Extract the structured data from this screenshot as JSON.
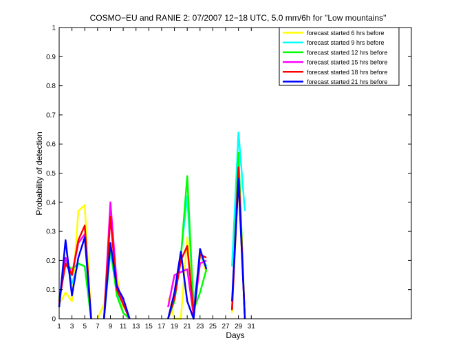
{
  "chart_data": {
    "type": "line",
    "title": "COSMO−EU and RANIE 2: 07/2007 12−18 UTC, 5.0 mm/6h for \"Low mountains\"",
    "xlabel": "Days",
    "ylabel": "Probability of detection",
    "xlim": [
      1,
      56
    ],
    "ylim": [
      0,
      1
    ],
    "xticks": [
      1,
      3,
      5,
      7,
      9,
      11,
      13,
      15,
      17,
      19,
      21,
      23,
      25,
      27,
      29,
      31
    ],
    "yticks": [
      0,
      0.1,
      0.2,
      0.3,
      0.4,
      0.5,
      0.6,
      0.7,
      0.8,
      0.9,
      1
    ],
    "ytick_labels": [
      "0",
      "0.1",
      "0.2",
      "0.3",
      "0.4",
      "0.5",
      "0.6",
      "0.7",
      "0.8",
      "0.9",
      "1"
    ],
    "legend_position": "top-right",
    "grid": false,
    "series": [
      {
        "name": "forecast started 6 hrs before",
        "color": "#ffff00",
        "segments": [
          [
            [
              1,
              0.05
            ],
            [
              2,
              0.09
            ],
            [
              3,
              0.06
            ],
            [
              4,
              0.37
            ],
            [
              5,
              0.39
            ],
            [
              6,
              0.0
            ]
          ],
          [
            [
              7,
              0.0
            ],
            [
              8,
              0.05
            ],
            [
              9,
              0.23
            ],
            [
              10,
              0.15
            ],
            [
              11,
              0.02
            ],
            [
              12,
              0.0
            ]
          ],
          [
            [
              18,
              0.07
            ],
            [
              19,
              0.0
            ],
            [
              20,
              0.0
            ],
            [
              21,
              0.28
            ],
            [
              22,
              0.05
            ],
            [
              23,
              0.22
            ],
            [
              24,
              0.16
            ]
          ],
          [
            [
              28,
              0.02
            ],
            [
              29,
              0.47
            ],
            [
              30,
              0.0
            ]
          ]
        ]
      },
      {
        "name": "forecast started 9 hrs before",
        "color": "#00ffff",
        "segments": [
          [
            [
              1,
              0.06
            ],
            [
              2,
              0.21
            ],
            [
              3,
              0.12
            ],
            [
              4,
              0.19
            ],
            [
              5,
              0.18
            ],
            [
              6,
              0.0
            ]
          ],
          [
            [
              8,
              0.0
            ],
            [
              9,
              0.23
            ],
            [
              10,
              0.09
            ],
            [
              11,
              0.02
            ],
            [
              12,
              0.0
            ]
          ],
          [
            [
              18,
              0.0
            ],
            [
              19,
              0.08
            ],
            [
              20,
              0.22
            ],
            [
              21,
              0.42
            ],
            [
              22,
              0.05
            ],
            [
              23,
              0.22
            ],
            [
              24,
              0.18
            ]
          ],
          [
            [
              28,
              0.18
            ],
            [
              29,
              0.64
            ],
            [
              30,
              0.37
            ]
          ]
        ]
      },
      {
        "name": "forecast started 12 hrs before",
        "color": "#00ff00",
        "segments": [
          [
            [
              1,
              0.07
            ],
            [
              2,
              0.19
            ],
            [
              3,
              0.17
            ],
            [
              4,
              0.19
            ],
            [
              5,
              0.18
            ],
            [
              6,
              0.0
            ]
          ],
          [
            [
              8,
              0.0
            ],
            [
              9,
              0.25
            ],
            [
              10,
              0.08
            ],
            [
              11,
              0.02
            ],
            [
              12,
              0.0
            ]
          ],
          [
            [
              18,
              0.0
            ],
            [
              19,
              0.06
            ],
            [
              20,
              0.21
            ],
            [
              21,
              0.49
            ],
            [
              22,
              0.03
            ],
            [
              23,
              0.09
            ],
            [
              24,
              0.17
            ]
          ],
          [
            [
              28,
              0.03
            ],
            [
              29,
              0.57
            ],
            [
              30,
              0.0
            ]
          ]
        ]
      },
      {
        "name": "forecast started 15 hrs before",
        "color": "#ff00ff",
        "segments": [
          [
            [
              1,
              0.05
            ],
            [
              2,
              0.21
            ],
            [
              3,
              0.15
            ],
            [
              4,
              0.26
            ],
            [
              5,
              0.29
            ],
            [
              6,
              0.0
            ]
          ],
          [
            [
              8,
              0.0
            ],
            [
              9,
              0.4
            ],
            [
              10,
              0.12
            ],
            [
              11,
              0.05
            ],
            [
              12,
              0.0
            ]
          ],
          [
            [
              18,
              0.04
            ],
            [
              19,
              0.15
            ],
            [
              20,
              0.16
            ],
            [
              21,
              0.17
            ],
            [
              22,
              0.01
            ],
            [
              23,
              0.19
            ],
            [
              24,
              0.2
            ]
          ],
          [
            [
              28,
              0.03
            ],
            [
              29,
              0.49
            ],
            [
              30,
              0.0
            ]
          ]
        ]
      },
      {
        "name": "forecast started 18 hrs before",
        "color": "#ff0000",
        "segments": [
          [
            [
              1,
              0.06
            ],
            [
              2,
              0.19
            ],
            [
              3,
              0.15
            ],
            [
              4,
              0.27
            ],
            [
              5,
              0.32
            ],
            [
              6,
              0.0
            ]
          ],
          [
            [
              8,
              0.0
            ],
            [
              9,
              0.35
            ],
            [
              10,
              0.1
            ],
            [
              11,
              0.05
            ],
            [
              12,
              0.0
            ]
          ],
          [
            [
              18,
              0.0
            ],
            [
              19,
              0.07
            ],
            [
              20,
              0.2
            ],
            [
              21,
              0.25
            ],
            [
              22,
              0.02
            ],
            [
              23,
              0.22
            ],
            [
              24,
              0.21
            ]
          ],
          [
            [
              28,
              0.03
            ],
            [
              29,
              0.52
            ],
            [
              30,
              0.0
            ]
          ]
        ]
      },
      {
        "name": "forecast started 21 hrs before",
        "color": "#0000ff",
        "segments": [
          [
            [
              1,
              0.04
            ],
            [
              2,
              0.27
            ],
            [
              3,
              0.08
            ],
            [
              4,
              0.21
            ],
            [
              5,
              0.28
            ],
            [
              6,
              0.0
            ]
          ],
          [
            [
              8,
              0.0
            ],
            [
              9,
              0.26
            ],
            [
              10,
              0.11
            ],
            [
              11,
              0.07
            ],
            [
              12,
              0.0
            ]
          ],
          [
            [
              18,
              0.0
            ],
            [
              19,
              0.09
            ],
            [
              20,
              0.23
            ],
            [
              21,
              0.06
            ],
            [
              22,
              0.0
            ],
            [
              23,
              0.24
            ],
            [
              24,
              0.17
            ]
          ],
          [
            [
              28,
              0.06
            ],
            [
              29,
              0.48
            ],
            [
              30,
              0.0
            ]
          ]
        ]
      }
    ]
  }
}
